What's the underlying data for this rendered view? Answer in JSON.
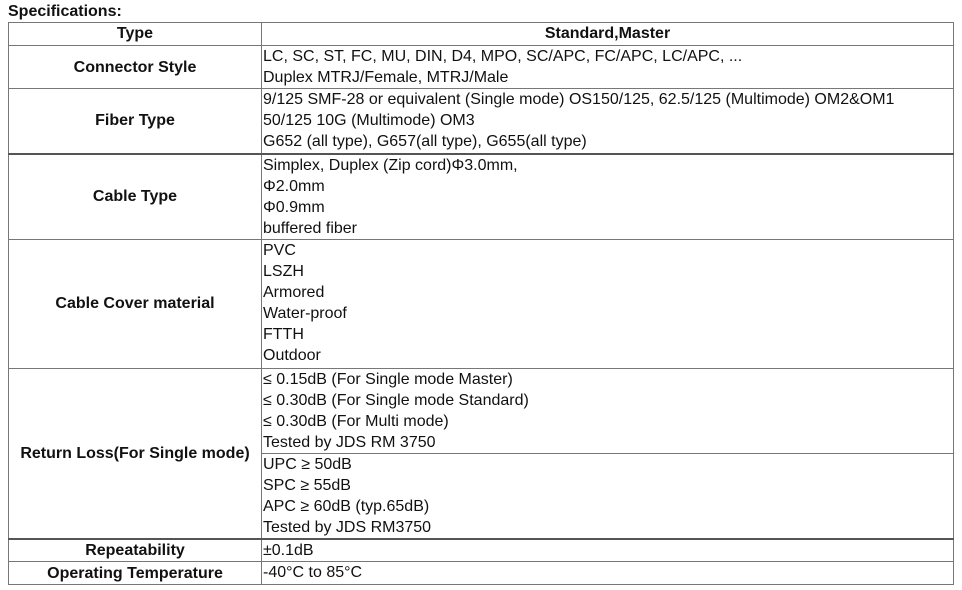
{
  "title": "Specifications:",
  "header": {
    "type": "Type",
    "value": "Standard,Master"
  },
  "rows": [
    {
      "label": "Connector Style",
      "lines": [
        "LC, SC, ST, FC, MU, DIN, D4, MPO, SC/APC, FC/APC, LC/APC, ...",
        "Duplex MTRJ/Female, MTRJ/Male"
      ]
    },
    {
      "label": "Fiber Type",
      "lines": [
        "9/125 SMF-28 or equivalent (Single mode) OS150/125, 62.5/125 (Multimode) OM2&OM1",
        "50/125 10G (Multimode) OM3",
        "G652 (all type), G657(all type), G655(all type)"
      ]
    },
    {
      "label": "Cable Type",
      "lines": [
        "Simplex, Duplex (Zip cord)Φ3.0mm,",
        "Φ2.0mm",
        "Φ0.9mm",
        "buffered fiber"
      ]
    },
    {
      "label": "Cable Cover material",
      "lines": [
        "PVC",
        "LSZH",
        "Armored",
        "Water-proof",
        "FTTH",
        "Outdoor"
      ]
    },
    {
      "label": "Return Loss(For Single mode)",
      "lines": [
        "≤ 0.15dB (For Single mode Master)",
        "≤ 0.30dB (For Single mode Standard)",
        "≤ 0.30dB (For Multi mode)",
        "Tested by JDS RM 3750"
      ],
      "lines2": [
        "UPC ≥ 50dB",
        "SPC ≥ 55dB",
        "APC ≥ 60dB (typ.65dB)",
        "Tested by JDS RM3750"
      ]
    },
    {
      "label": "Repeatability",
      "lines": [
        "±0.1dB"
      ]
    },
    {
      "label": "Operating Temperature",
      "lines": [
        "-40°C to 85°C"
      ]
    }
  ]
}
